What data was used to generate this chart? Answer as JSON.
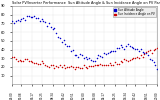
{
  "title": "Solar PV/Inverter Performance  Sun Altitude Angle & Sun Incidence Angle on PV Panels",
  "bg_color": "#ffffff",
  "plot_bg": "#ffffff",
  "grid_color": "#aaaaaa",
  "blue_color": "#0000cc",
  "red_color": "#cc0000",
  "legend_blue": "Sun Altitude Angle",
  "legend_red": "Sun Incidence Angle on PV",
  "ylim": [
    0,
    90
  ],
  "y_ticks": [
    10,
    20,
    30,
    40,
    50,
    60,
    70,
    80,
    90
  ],
  "n_points": 80,
  "title_color": "#000000",
  "tick_color": "#000000"
}
